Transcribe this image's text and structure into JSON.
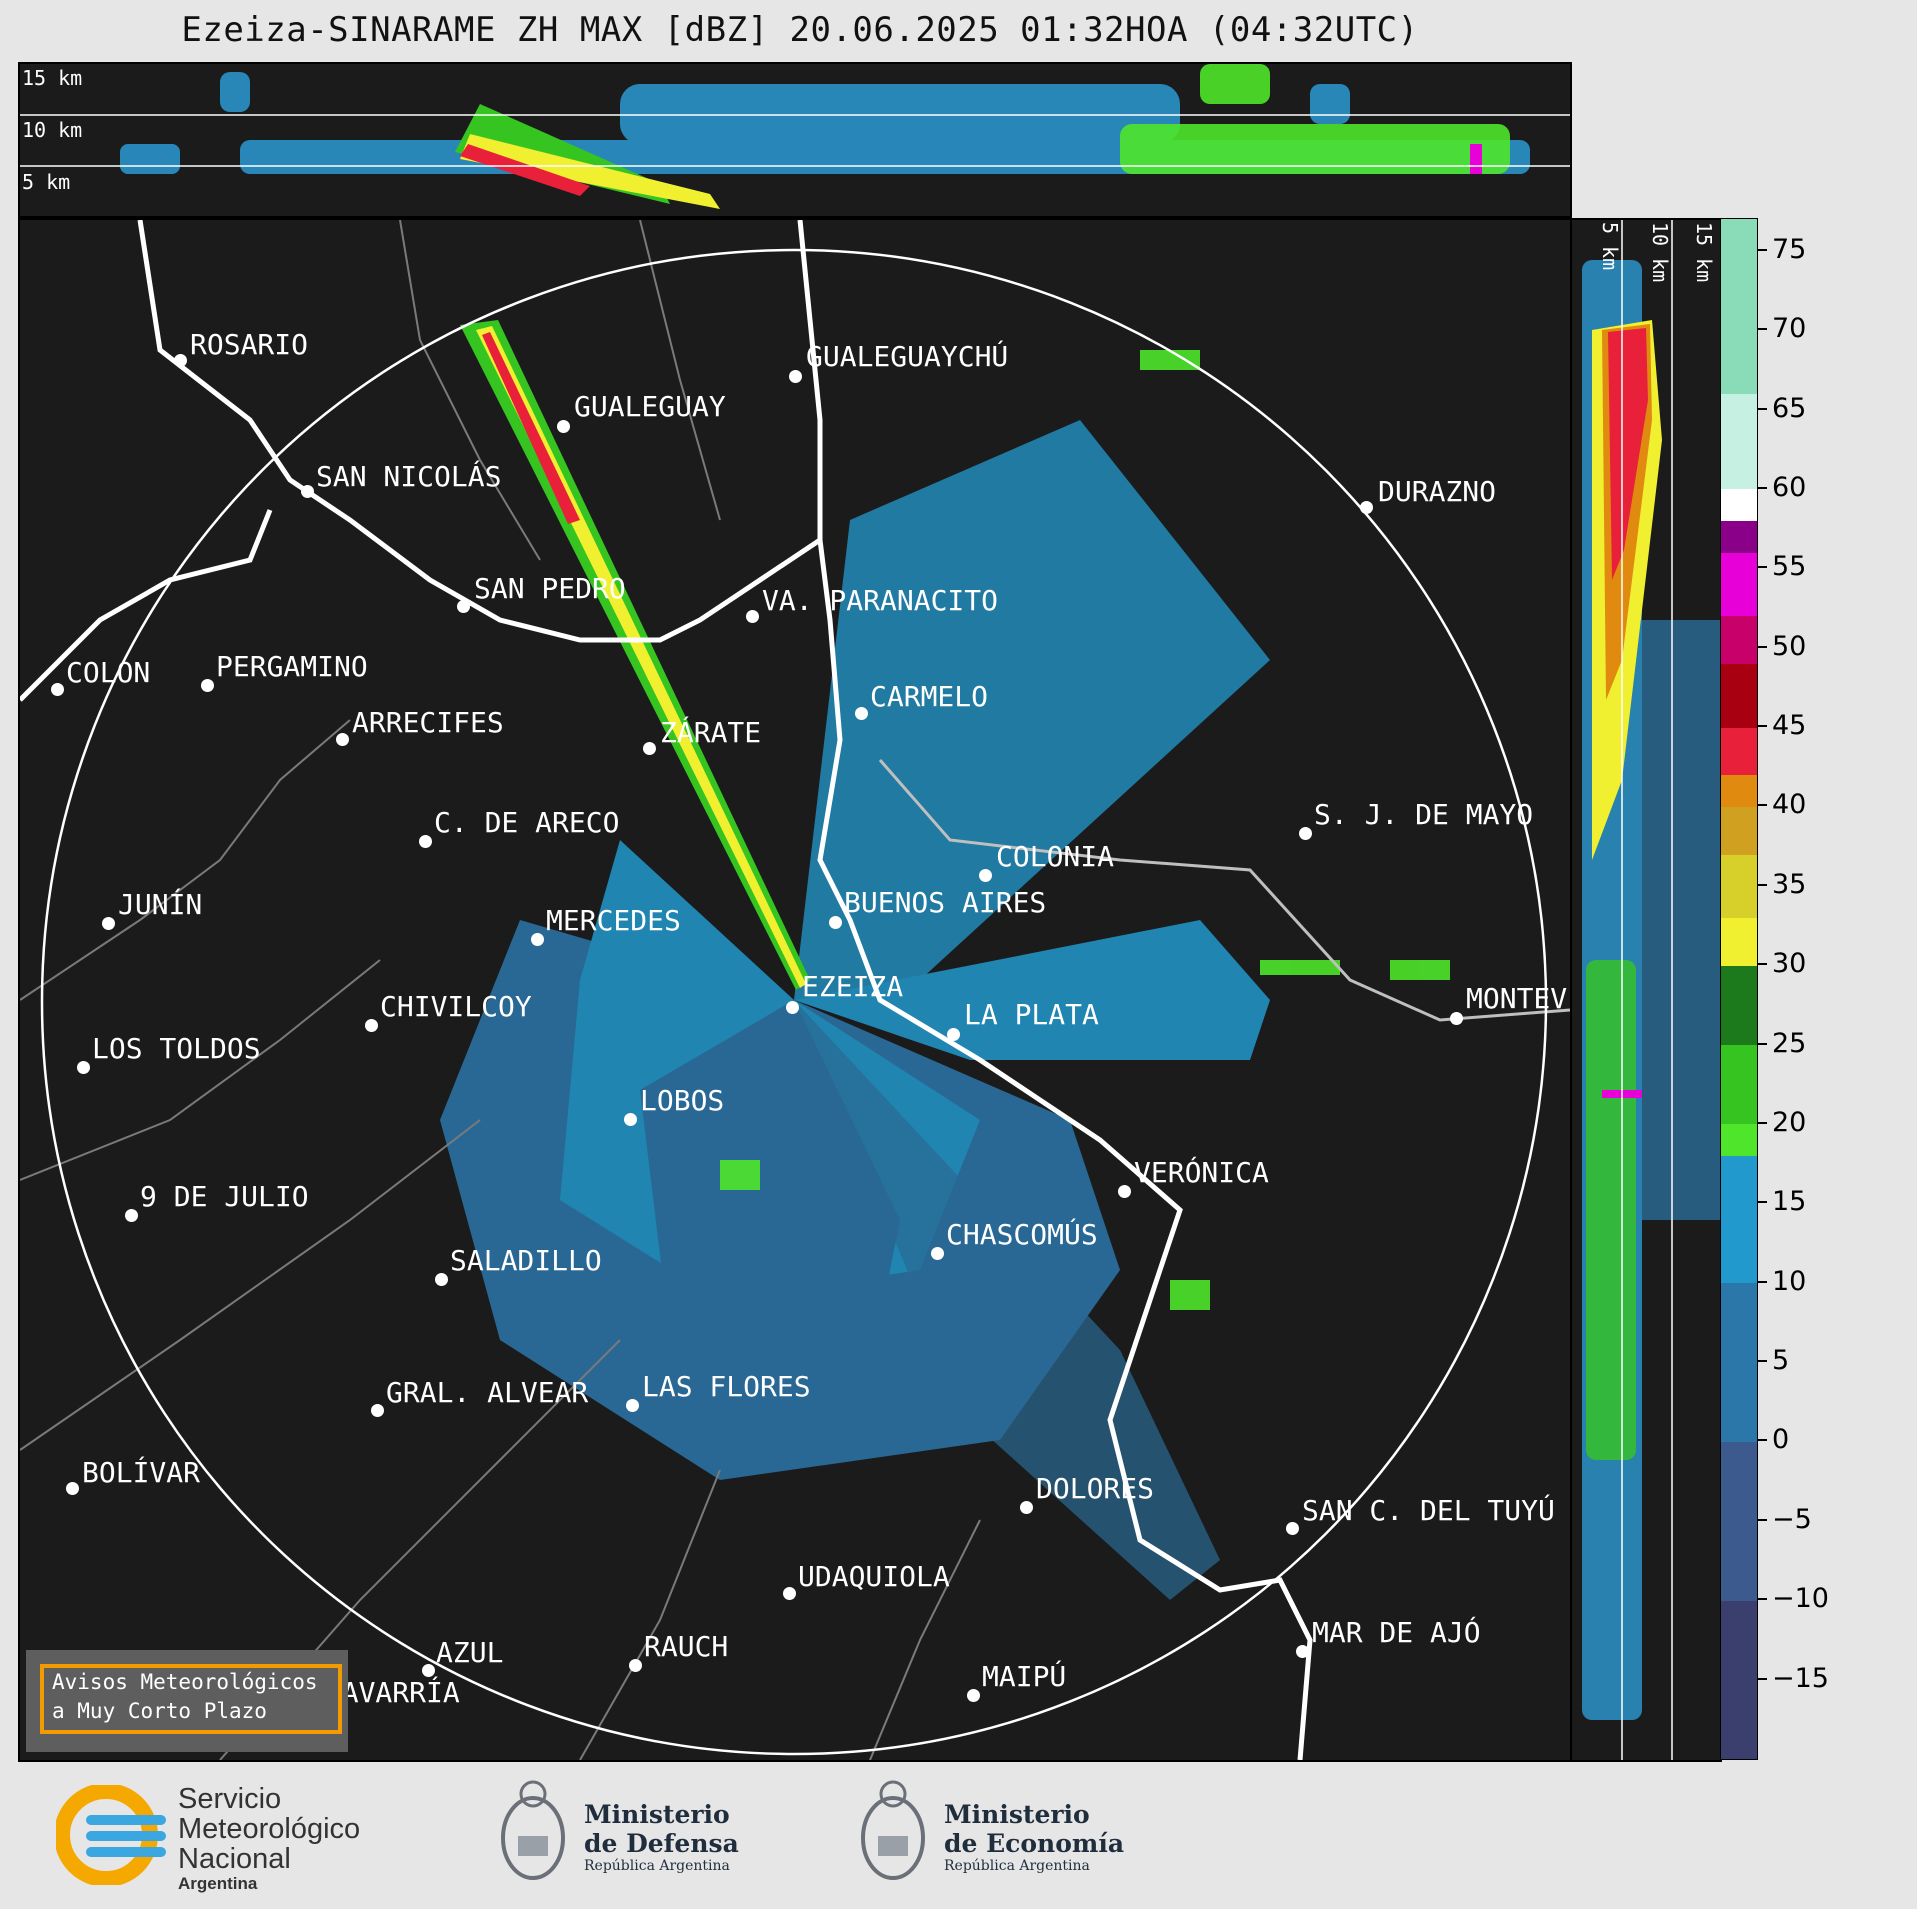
{
  "title": "Ezeiza-SINARAME ZH MAX [dBZ] 20.06.2025 01:32HOA (04:32UTC)",
  "top_panel": {
    "height_labels": [
      "15 km",
      "10 km",
      "5 km"
    ]
  },
  "side_panel": {
    "height_labels": [
      "5 km",
      "10 km",
      "15 km"
    ]
  },
  "places": [
    {
      "name": "ROSARIO"
    },
    {
      "name": "GUALEGUAYCHÚ"
    },
    {
      "name": "GUALEGUAY"
    },
    {
      "name": "SAN NICOLÁS"
    },
    {
      "name": "DURAZNO"
    },
    {
      "name": "SAN PEDRO"
    },
    {
      "name": "VA. PARANACITO"
    },
    {
      "name": "COLON"
    },
    {
      "name": "PERGAMINO"
    },
    {
      "name": "CARMELO"
    },
    {
      "name": "ARRECIFES"
    },
    {
      "name": "ZÁRATE"
    },
    {
      "name": "S. J. DE MAYO"
    },
    {
      "name": "C. DE ARECO"
    },
    {
      "name": "COLONIA"
    },
    {
      "name": "JUNÍN"
    },
    {
      "name": "BUENOS AIRES"
    },
    {
      "name": "MERCEDES"
    },
    {
      "name": "EZEIZA"
    },
    {
      "name": "MONTEVIDEO"
    },
    {
      "name": "CHIVILCOY"
    },
    {
      "name": "LA PLATA"
    },
    {
      "name": "LOS TOLDOS"
    },
    {
      "name": "LOBOS"
    },
    {
      "name": "VERÓNICA"
    },
    {
      "name": "9 DE JULIO"
    },
    {
      "name": "CHASCOMÚS"
    },
    {
      "name": "SALADILLO"
    },
    {
      "name": "GRAL. ALVEAR"
    },
    {
      "name": "LAS FLORES"
    },
    {
      "name": "BOLÍVAR"
    },
    {
      "name": "DOLORES"
    },
    {
      "name": "SAN C. DEL TUYÚ"
    },
    {
      "name": "UDAQUIOLA"
    },
    {
      "name": "MAR DE AJÓ"
    },
    {
      "name": "AZUL"
    },
    {
      "name": "RAUCH"
    },
    {
      "name": "OLAVARRÍA"
    },
    {
      "name": "MAIPÚ"
    }
  ],
  "colorbar": {
    "ticks": [
      "75",
      "70",
      "65",
      "60",
      "55",
      "50",
      "45",
      "40",
      "35",
      "30",
      "25",
      "20",
      "15",
      "10",
      "5",
      "0",
      "−5",
      "−10",
      "−15"
    ],
    "range_dbz": [
      -20,
      77
    ],
    "bands": [
      {
        "from": -20,
        "to": -10,
        "color": "#3a3f6e"
      },
      {
        "from": -10,
        "to": 0,
        "color": "#3c5a8e"
      },
      {
        "from": 0,
        "to": 10,
        "color": "#2c77aa"
      },
      {
        "from": 10,
        "to": 18,
        "color": "#2299cc"
      },
      {
        "from": 18,
        "to": 20,
        "color": "#4ee52a"
      },
      {
        "from": 20,
        "to": 25,
        "color": "#36c421"
      },
      {
        "from": 25,
        "to": 30,
        "color": "#1c7a1c"
      },
      {
        "from": 30,
        "to": 33,
        "color": "#f0f030"
      },
      {
        "from": 33,
        "to": 37,
        "color": "#d8d02a"
      },
      {
        "from": 37,
        "to": 40,
        "color": "#d0a020"
      },
      {
        "from": 40,
        "to": 42,
        "color": "#e08a10"
      },
      {
        "from": 42,
        "to": 45,
        "color": "#e8203a"
      },
      {
        "from": 45,
        "to": 49,
        "color": "#a80010"
      },
      {
        "from": 49,
        "to": 52,
        "color": "#c8006a"
      },
      {
        "from": 52,
        "to": 56,
        "color": "#e800d8"
      },
      {
        "from": 56,
        "to": 58,
        "color": "#8a0088"
      },
      {
        "from": 58,
        "to": 60,
        "color": "#ffffff"
      },
      {
        "from": 60,
        "to": 66,
        "color": "#c6f0e2"
      },
      {
        "from": 66,
        "to": 77,
        "color": "#8adcb8"
      }
    ]
  },
  "alert_box": {
    "line1": "Avisos Meteorológicos",
    "line2": "a Muy Corto Plazo"
  },
  "logos": {
    "smn": {
      "line1": "Servicio",
      "line2": "Meteorológico",
      "line3": "Nacional",
      "line4": "Argentina"
    },
    "defensa": {
      "line1": "Ministerio",
      "line2": "de Defensa",
      "line3": "República Argentina"
    },
    "economia": {
      "line1": "Ministerio",
      "line2": "de Economía",
      "line3": "República Argentina"
    }
  }
}
